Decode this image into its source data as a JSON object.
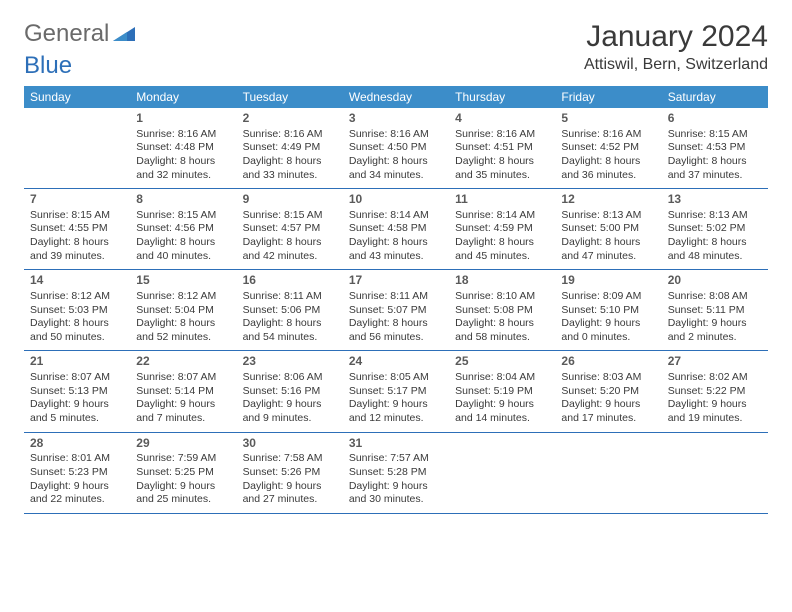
{
  "logo": {
    "text1": "General",
    "text2": "Blue"
  },
  "header": {
    "month_title": "January 2024",
    "location": "Attiswil, Bern, Switzerland"
  },
  "colors": {
    "header_bg": "#3c8dc9",
    "accent": "#2d6fb8",
    "logo_gray": "#6a6a6a",
    "text": "#3a3a3a",
    "daynum": "#5a5a5a",
    "page_bg": "#ffffff"
  },
  "weekdays": [
    "Sunday",
    "Monday",
    "Tuesday",
    "Wednesday",
    "Thursday",
    "Friday",
    "Saturday"
  ],
  "weeks": [
    [
      null,
      {
        "num": "1",
        "sunrise": "Sunrise: 8:16 AM",
        "sunset": "Sunset: 4:48 PM",
        "daylight1": "Daylight: 8 hours",
        "daylight2": "and 32 minutes."
      },
      {
        "num": "2",
        "sunrise": "Sunrise: 8:16 AM",
        "sunset": "Sunset: 4:49 PM",
        "daylight1": "Daylight: 8 hours",
        "daylight2": "and 33 minutes."
      },
      {
        "num": "3",
        "sunrise": "Sunrise: 8:16 AM",
        "sunset": "Sunset: 4:50 PM",
        "daylight1": "Daylight: 8 hours",
        "daylight2": "and 34 minutes."
      },
      {
        "num": "4",
        "sunrise": "Sunrise: 8:16 AM",
        "sunset": "Sunset: 4:51 PM",
        "daylight1": "Daylight: 8 hours",
        "daylight2": "and 35 minutes."
      },
      {
        "num": "5",
        "sunrise": "Sunrise: 8:16 AM",
        "sunset": "Sunset: 4:52 PM",
        "daylight1": "Daylight: 8 hours",
        "daylight2": "and 36 minutes."
      },
      {
        "num": "6",
        "sunrise": "Sunrise: 8:15 AM",
        "sunset": "Sunset: 4:53 PM",
        "daylight1": "Daylight: 8 hours",
        "daylight2": "and 37 minutes."
      }
    ],
    [
      {
        "num": "7",
        "sunrise": "Sunrise: 8:15 AM",
        "sunset": "Sunset: 4:55 PM",
        "daylight1": "Daylight: 8 hours",
        "daylight2": "and 39 minutes."
      },
      {
        "num": "8",
        "sunrise": "Sunrise: 8:15 AM",
        "sunset": "Sunset: 4:56 PM",
        "daylight1": "Daylight: 8 hours",
        "daylight2": "and 40 minutes."
      },
      {
        "num": "9",
        "sunrise": "Sunrise: 8:15 AM",
        "sunset": "Sunset: 4:57 PM",
        "daylight1": "Daylight: 8 hours",
        "daylight2": "and 42 minutes."
      },
      {
        "num": "10",
        "sunrise": "Sunrise: 8:14 AM",
        "sunset": "Sunset: 4:58 PM",
        "daylight1": "Daylight: 8 hours",
        "daylight2": "and 43 minutes."
      },
      {
        "num": "11",
        "sunrise": "Sunrise: 8:14 AM",
        "sunset": "Sunset: 4:59 PM",
        "daylight1": "Daylight: 8 hours",
        "daylight2": "and 45 minutes."
      },
      {
        "num": "12",
        "sunrise": "Sunrise: 8:13 AM",
        "sunset": "Sunset: 5:00 PM",
        "daylight1": "Daylight: 8 hours",
        "daylight2": "and 47 minutes."
      },
      {
        "num": "13",
        "sunrise": "Sunrise: 8:13 AM",
        "sunset": "Sunset: 5:02 PM",
        "daylight1": "Daylight: 8 hours",
        "daylight2": "and 48 minutes."
      }
    ],
    [
      {
        "num": "14",
        "sunrise": "Sunrise: 8:12 AM",
        "sunset": "Sunset: 5:03 PM",
        "daylight1": "Daylight: 8 hours",
        "daylight2": "and 50 minutes."
      },
      {
        "num": "15",
        "sunrise": "Sunrise: 8:12 AM",
        "sunset": "Sunset: 5:04 PM",
        "daylight1": "Daylight: 8 hours",
        "daylight2": "and 52 minutes."
      },
      {
        "num": "16",
        "sunrise": "Sunrise: 8:11 AM",
        "sunset": "Sunset: 5:06 PM",
        "daylight1": "Daylight: 8 hours",
        "daylight2": "and 54 minutes."
      },
      {
        "num": "17",
        "sunrise": "Sunrise: 8:11 AM",
        "sunset": "Sunset: 5:07 PM",
        "daylight1": "Daylight: 8 hours",
        "daylight2": "and 56 minutes."
      },
      {
        "num": "18",
        "sunrise": "Sunrise: 8:10 AM",
        "sunset": "Sunset: 5:08 PM",
        "daylight1": "Daylight: 8 hours",
        "daylight2": "and 58 minutes."
      },
      {
        "num": "19",
        "sunrise": "Sunrise: 8:09 AM",
        "sunset": "Sunset: 5:10 PM",
        "daylight1": "Daylight: 9 hours",
        "daylight2": "and 0 minutes."
      },
      {
        "num": "20",
        "sunrise": "Sunrise: 8:08 AM",
        "sunset": "Sunset: 5:11 PM",
        "daylight1": "Daylight: 9 hours",
        "daylight2": "and 2 minutes."
      }
    ],
    [
      {
        "num": "21",
        "sunrise": "Sunrise: 8:07 AM",
        "sunset": "Sunset: 5:13 PM",
        "daylight1": "Daylight: 9 hours",
        "daylight2": "and 5 minutes."
      },
      {
        "num": "22",
        "sunrise": "Sunrise: 8:07 AM",
        "sunset": "Sunset: 5:14 PM",
        "daylight1": "Daylight: 9 hours",
        "daylight2": "and 7 minutes."
      },
      {
        "num": "23",
        "sunrise": "Sunrise: 8:06 AM",
        "sunset": "Sunset: 5:16 PM",
        "daylight1": "Daylight: 9 hours",
        "daylight2": "and 9 minutes."
      },
      {
        "num": "24",
        "sunrise": "Sunrise: 8:05 AM",
        "sunset": "Sunset: 5:17 PM",
        "daylight1": "Daylight: 9 hours",
        "daylight2": "and 12 minutes."
      },
      {
        "num": "25",
        "sunrise": "Sunrise: 8:04 AM",
        "sunset": "Sunset: 5:19 PM",
        "daylight1": "Daylight: 9 hours",
        "daylight2": "and 14 minutes."
      },
      {
        "num": "26",
        "sunrise": "Sunrise: 8:03 AM",
        "sunset": "Sunset: 5:20 PM",
        "daylight1": "Daylight: 9 hours",
        "daylight2": "and 17 minutes."
      },
      {
        "num": "27",
        "sunrise": "Sunrise: 8:02 AM",
        "sunset": "Sunset: 5:22 PM",
        "daylight1": "Daylight: 9 hours",
        "daylight2": "and 19 minutes."
      }
    ],
    [
      {
        "num": "28",
        "sunrise": "Sunrise: 8:01 AM",
        "sunset": "Sunset: 5:23 PM",
        "daylight1": "Daylight: 9 hours",
        "daylight2": "and 22 minutes."
      },
      {
        "num": "29",
        "sunrise": "Sunrise: 7:59 AM",
        "sunset": "Sunset: 5:25 PM",
        "daylight1": "Daylight: 9 hours",
        "daylight2": "and 25 minutes."
      },
      {
        "num": "30",
        "sunrise": "Sunrise: 7:58 AM",
        "sunset": "Sunset: 5:26 PM",
        "daylight1": "Daylight: 9 hours",
        "daylight2": "and 27 minutes."
      },
      {
        "num": "31",
        "sunrise": "Sunrise: 7:57 AM",
        "sunset": "Sunset: 5:28 PM",
        "daylight1": "Daylight: 9 hours",
        "daylight2": "and 30 minutes."
      },
      null,
      null,
      null
    ]
  ]
}
